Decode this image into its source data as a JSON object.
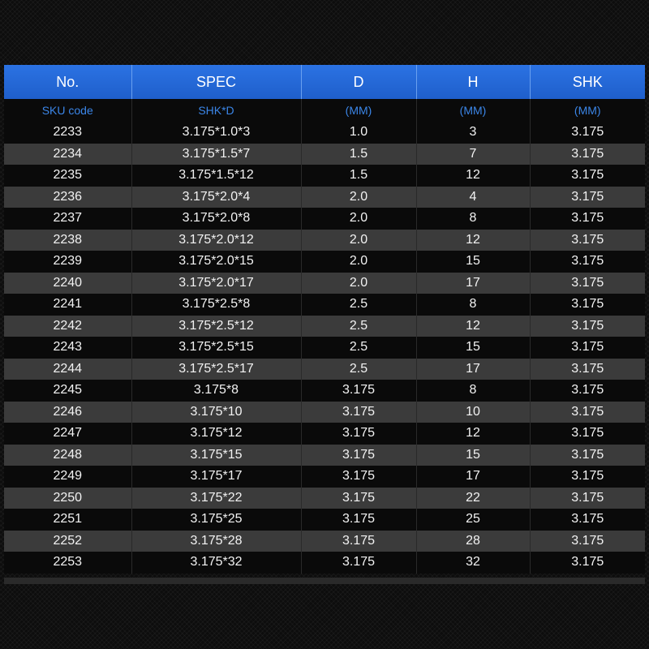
{
  "header": [
    "No.",
    "SPEC",
    "D",
    "H",
    "SHK"
  ],
  "units": [
    "SKU code",
    "SHK*D",
    "(MM)",
    "(MM)",
    "(MM)"
  ],
  "rows": [
    [
      "2233",
      "3.175*1.0*3",
      "1.0",
      "3",
      "3.175"
    ],
    [
      "2234",
      "3.175*1.5*7",
      "1.5",
      "7",
      "3.175"
    ],
    [
      "2235",
      "3.175*1.5*12",
      "1.5",
      "12",
      "3.175"
    ],
    [
      "2236",
      "3.175*2.0*4",
      "2.0",
      "4",
      "3.175"
    ],
    [
      "2237",
      "3.175*2.0*8",
      "2.0",
      "8",
      "3.175"
    ],
    [
      "2238",
      "3.175*2.0*12",
      "2.0",
      "12",
      "3.175"
    ],
    [
      "2239",
      "3.175*2.0*15",
      "2.0",
      "15",
      "3.175"
    ],
    [
      "2240",
      "3.175*2.0*17",
      "2.0",
      "17",
      "3.175"
    ],
    [
      "2241",
      "3.175*2.5*8",
      "2.5",
      "8",
      "3.175"
    ],
    [
      "2242",
      "3.175*2.5*12",
      "2.5",
      "12",
      "3.175"
    ],
    [
      "2243",
      "3.175*2.5*15",
      "2.5",
      "15",
      "3.175"
    ],
    [
      "2244",
      "3.175*2.5*17",
      "2.5",
      "17",
      "3.175"
    ],
    [
      "2245",
      "3.175*8",
      "3.175",
      "8",
      "3.175"
    ],
    [
      "2246",
      "3.175*10",
      "3.175",
      "10",
      "3.175"
    ],
    [
      "2247",
      "3.175*12",
      "3.175",
      "12",
      "3.175"
    ],
    [
      "2248",
      "3.175*15",
      "3.175",
      "15",
      "3.175"
    ],
    [
      "2249",
      "3.175*17",
      "3.175",
      "17",
      "3.175"
    ],
    [
      "2250",
      "3.175*22",
      "3.175",
      "22",
      "3.175"
    ],
    [
      "2251",
      "3.175*25",
      "3.175",
      "25",
      "3.175"
    ],
    [
      "2252",
      "3.175*28",
      "3.175",
      "28",
      "3.175"
    ],
    [
      "2253",
      "3.175*32",
      "3.175",
      "32",
      "3.175"
    ]
  ],
  "colors": {
    "header_bg": "#2b72e3",
    "unit_text": "#3b86e8",
    "row_dark": "#0a0a0a",
    "row_light": "#3b3b3b"
  }
}
